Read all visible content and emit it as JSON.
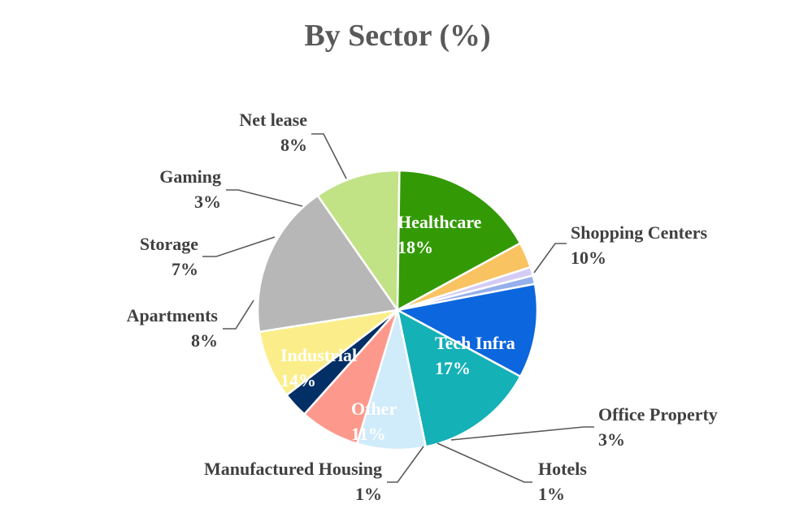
{
  "chart_data": {
    "type": "pie",
    "title": "By Sector (%)",
    "start_category": "Healthcare",
    "direction": "clockwise",
    "slices": [
      {
        "label": "Healthcare",
        "value_label": "18%",
        "value": 18,
        "color": "#b7b7b7",
        "text_color": "#ffffff",
        "placement": "inside"
      },
      {
        "label": "Shopping Centers",
        "value_label": "10%",
        "value": 10,
        "color": "#c1e285",
        "text_color": "#404040",
        "placement": "outside"
      },
      {
        "label": "Tech Infra",
        "value_label": "17%",
        "value": 17,
        "color": "#339a05",
        "text_color": "#ffffff",
        "placement": "inside"
      },
      {
        "label": "Office Property",
        "value_label": "3%",
        "value": 3,
        "color": "#f9c362",
        "text_color": "#404040",
        "placement": "outside"
      },
      {
        "label": "Hotels",
        "value_label": "1%",
        "value": 1,
        "color": "#d5ccf5",
        "text_color": "#404040",
        "placement": "outside"
      },
      {
        "label": "Manufactured Housing",
        "value_label": "1%",
        "value": 1,
        "color": "#96b0ec",
        "text_color": "#404040",
        "placement": "outside"
      },
      {
        "label": "Other",
        "value_label": "11%",
        "value": 11,
        "color": "#0c66dd",
        "text_color": "#ffffff",
        "placement": "inside"
      },
      {
        "label": "Industrial",
        "value_label": "14%",
        "value": 14,
        "color": "#14b1b6",
        "text_color": "#ffffff",
        "placement": "inside"
      },
      {
        "label": "Apartments",
        "value_label": "8%",
        "value": 8,
        "color": "#d0ebfa",
        "text_color": "#404040",
        "placement": "outside"
      },
      {
        "label": "Storage",
        "value_label": "7%",
        "value": 7,
        "color": "#fd998c",
        "text_color": "#404040",
        "placement": "outside"
      },
      {
        "label": "Gaming",
        "value_label": "3%",
        "value": 3,
        "color": "#022f66",
        "text_color": "#404040",
        "placement": "outside"
      },
      {
        "label": "Net lease",
        "value_label": "8%",
        "value": 8,
        "color": "#fbee8a",
        "text_color": "#404040",
        "placement": "outside"
      }
    ]
  }
}
